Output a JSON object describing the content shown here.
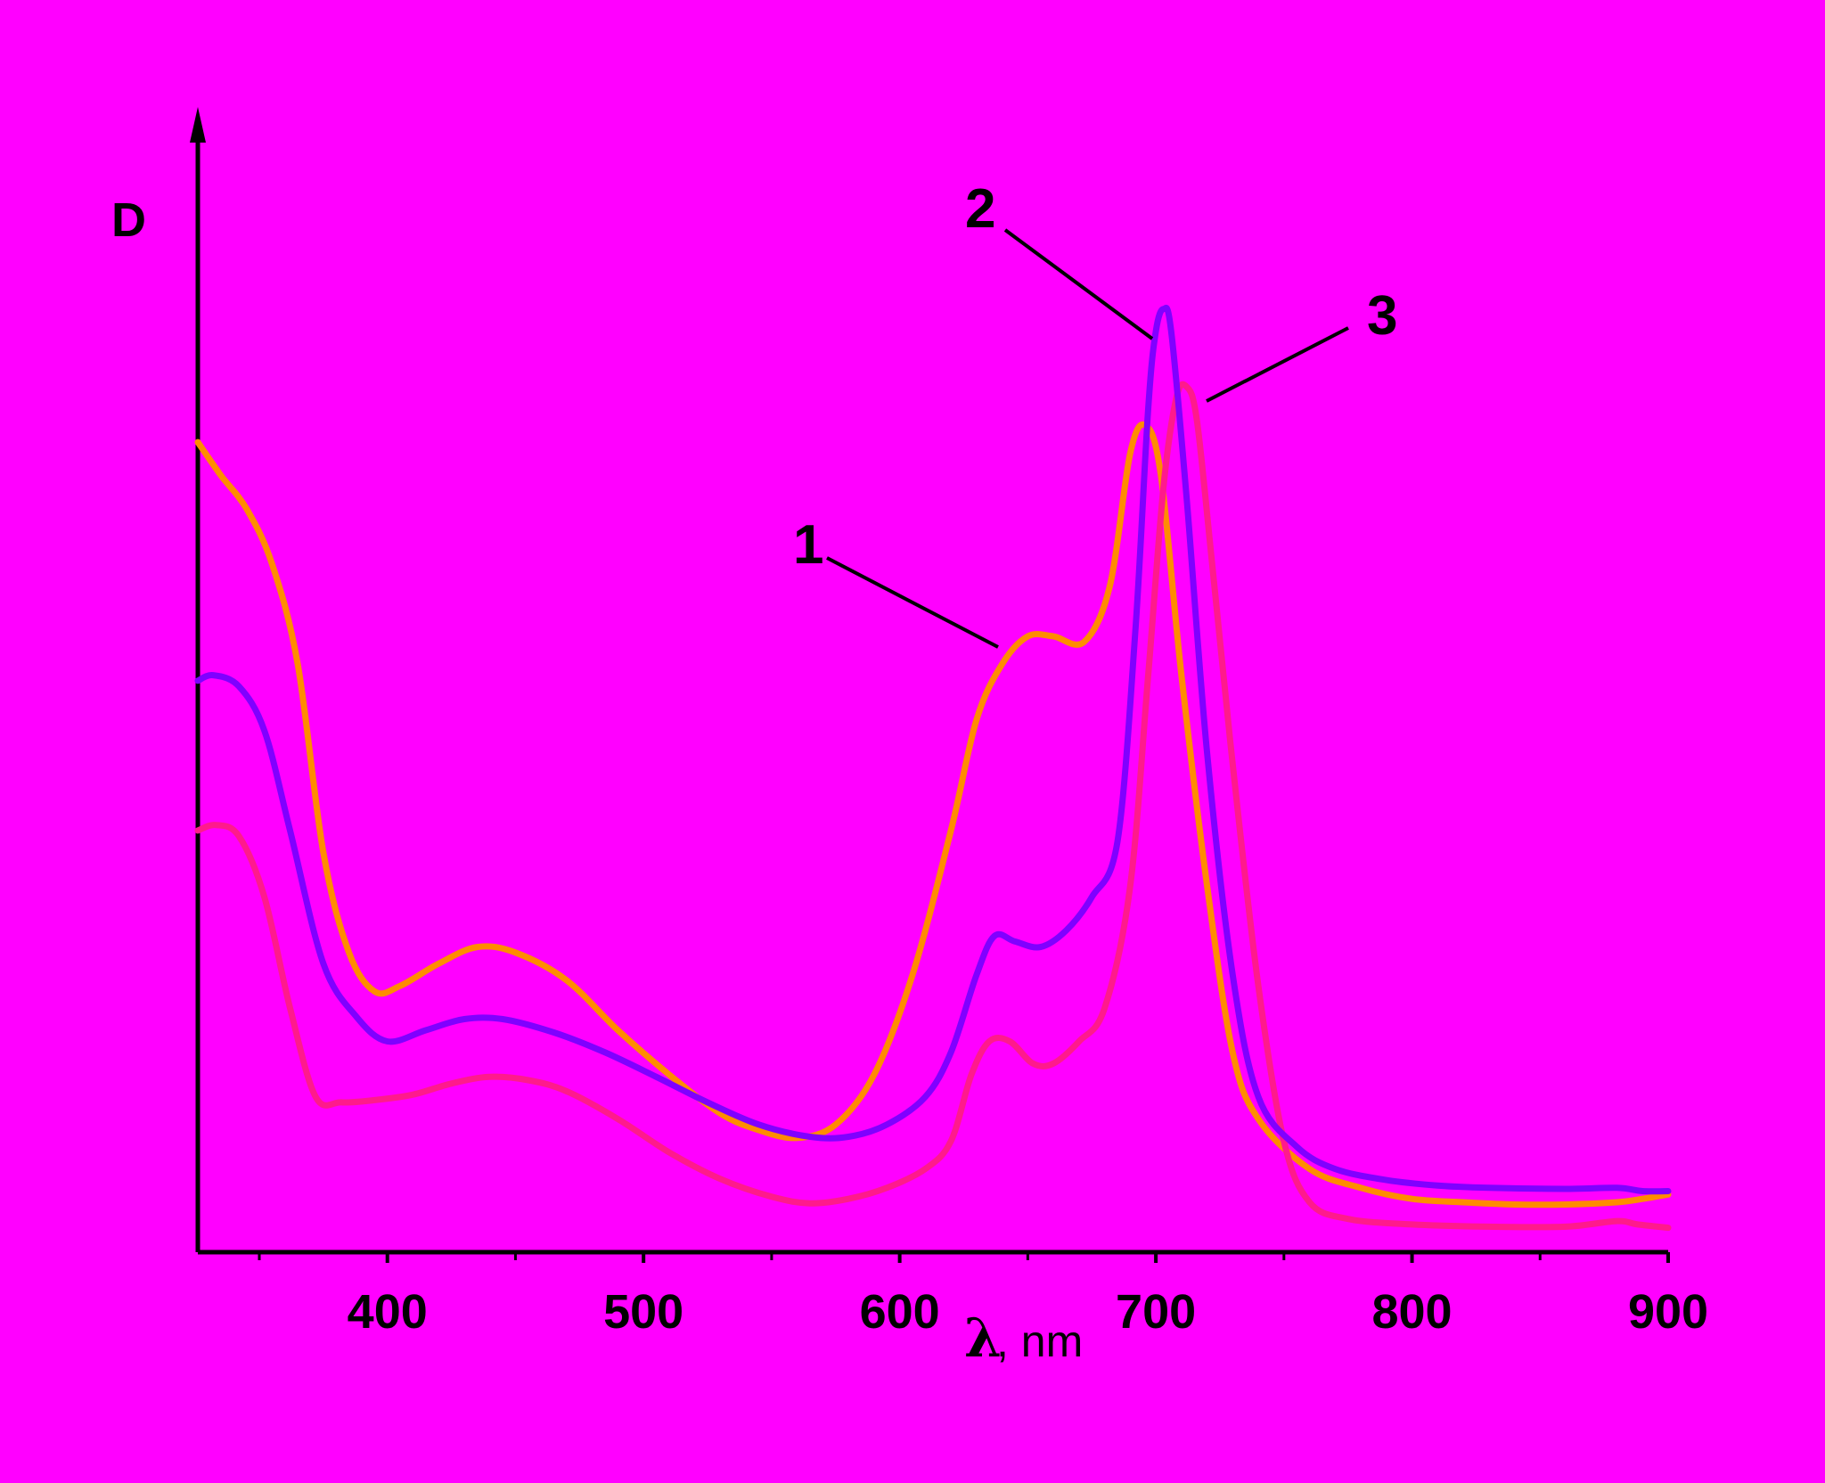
{
  "background": "#ff00ff",
  "chart_data": {
    "type": "line",
    "ylabel": "D",
    "xlabel_symbol": "λ",
    "xlabel_unit": ", nm",
    "xlim": [
      326,
      900
    ],
    "ylim": [
      0,
      1
    ],
    "xticks_major": [
      "400",
      "500",
      "600",
      "700",
      "800",
      "900"
    ],
    "xticks_minor": [
      350,
      450,
      550,
      650,
      750,
      850
    ],
    "grid": false,
    "legend": "none",
    "series": [
      {
        "label": "1",
        "color": "#ff8c00",
        "points": [
          [
            326,
            0.73
          ],
          [
            335,
            0.7
          ],
          [
            345,
            0.67
          ],
          [
            355,
            0.62
          ],
          [
            365,
            0.53
          ],
          [
            375,
            0.36
          ],
          [
            385,
            0.27
          ],
          [
            395,
            0.235
          ],
          [
            405,
            0.24
          ],
          [
            420,
            0.26
          ],
          [
            435,
            0.275
          ],
          [
            450,
            0.27
          ],
          [
            470,
            0.245
          ],
          [
            490,
            0.2
          ],
          [
            510,
            0.16
          ],
          [
            530,
            0.125
          ],
          [
            545,
            0.11
          ],
          [
            560,
            0.103
          ],
          [
            575,
            0.115
          ],
          [
            590,
            0.16
          ],
          [
            605,
            0.25
          ],
          [
            620,
            0.38
          ],
          [
            630,
            0.48
          ],
          [
            640,
            0.53
          ],
          [
            650,
            0.555
          ],
          [
            660,
            0.555
          ],
          [
            672,
            0.55
          ],
          [
            682,
            0.6
          ],
          [
            690,
            0.72
          ],
          [
            696,
            0.745
          ],
          [
            702,
            0.7
          ],
          [
            710,
            0.52
          ],
          [
            720,
            0.33
          ],
          [
            730,
            0.18
          ],
          [
            740,
            0.12
          ],
          [
            760,
            0.075
          ],
          [
            780,
            0.058
          ],
          [
            800,
            0.048
          ],
          [
            820,
            0.045
          ],
          [
            840,
            0.043
          ],
          [
            860,
            0.043
          ],
          [
            880,
            0.045
          ],
          [
            890,
            0.048
          ],
          [
            900,
            0.052
          ]
        ]
      },
      {
        "label": "2",
        "color": "#8000ff",
        "points": [
          [
            326,
            0.515
          ],
          [
            332,
            0.52
          ],
          [
            342,
            0.51
          ],
          [
            352,
            0.47
          ],
          [
            362,
            0.38
          ],
          [
            375,
            0.26
          ],
          [
            388,
            0.212
          ],
          [
            400,
            0.19
          ],
          [
            415,
            0.2
          ],
          [
            430,
            0.21
          ],
          [
            445,
            0.21
          ],
          [
            465,
            0.198
          ],
          [
            485,
            0.18
          ],
          [
            505,
            0.158
          ],
          [
            525,
            0.135
          ],
          [
            545,
            0.115
          ],
          [
            565,
            0.104
          ],
          [
            580,
            0.104
          ],
          [
            595,
            0.115
          ],
          [
            610,
            0.14
          ],
          [
            620,
            0.18
          ],
          [
            630,
            0.25
          ],
          [
            637,
            0.285
          ],
          [
            645,
            0.28
          ],
          [
            655,
            0.275
          ],
          [
            665,
            0.29
          ],
          [
            675,
            0.32
          ],
          [
            685,
            0.37
          ],
          [
            692,
            0.56
          ],
          [
            697,
            0.76
          ],
          [
            700,
            0.83
          ],
          [
            703,
            0.85
          ],
          [
            706,
            0.83
          ],
          [
            712,
            0.68
          ],
          [
            720,
            0.45
          ],
          [
            730,
            0.25
          ],
          [
            740,
            0.14
          ],
          [
            755,
            0.095
          ],
          [
            770,
            0.075
          ],
          [
            790,
            0.065
          ],
          [
            810,
            0.06
          ],
          [
            830,
            0.058
          ],
          [
            860,
            0.057
          ],
          [
            880,
            0.058
          ],
          [
            890,
            0.055
          ],
          [
            900,
            0.055
          ]
        ]
      },
      {
        "label": "3",
        "color": "#ff1a8c",
        "points": [
          [
            326,
            0.38
          ],
          [
            333,
            0.385
          ],
          [
            342,
            0.375
          ],
          [
            352,
            0.32
          ],
          [
            362,
            0.22
          ],
          [
            372,
            0.14
          ],
          [
            382,
            0.135
          ],
          [
            395,
            0.137
          ],
          [
            410,
            0.142
          ],
          [
            425,
            0.152
          ],
          [
            440,
            0.158
          ],
          [
            455,
            0.155
          ],
          [
            470,
            0.145
          ],
          [
            490,
            0.12
          ],
          [
            510,
            0.09
          ],
          [
            530,
            0.066
          ],
          [
            550,
            0.05
          ],
          [
            565,
            0.044
          ],
          [
            580,
            0.048
          ],
          [
            595,
            0.058
          ],
          [
            610,
            0.075
          ],
          [
            620,
            0.1
          ],
          [
            628,
            0.16
          ],
          [
            635,
            0.19
          ],
          [
            643,
            0.19
          ],
          [
            652,
            0.17
          ],
          [
            660,
            0.17
          ],
          [
            670,
            0.19
          ],
          [
            680,
            0.22
          ],
          [
            690,
            0.33
          ],
          [
            697,
            0.52
          ],
          [
            703,
            0.69
          ],
          [
            708,
            0.77
          ],
          [
            712,
            0.78
          ],
          [
            716,
            0.75
          ],
          [
            722,
            0.62
          ],
          [
            730,
            0.44
          ],
          [
            740,
            0.24
          ],
          [
            750,
            0.1
          ],
          [
            760,
            0.045
          ],
          [
            775,
            0.03
          ],
          [
            800,
            0.025
          ],
          [
            830,
            0.023
          ],
          [
            860,
            0.023
          ],
          [
            880,
            0.028
          ],
          [
            888,
            0.025
          ],
          [
            900,
            0.022
          ]
        ]
      }
    ]
  }
}
